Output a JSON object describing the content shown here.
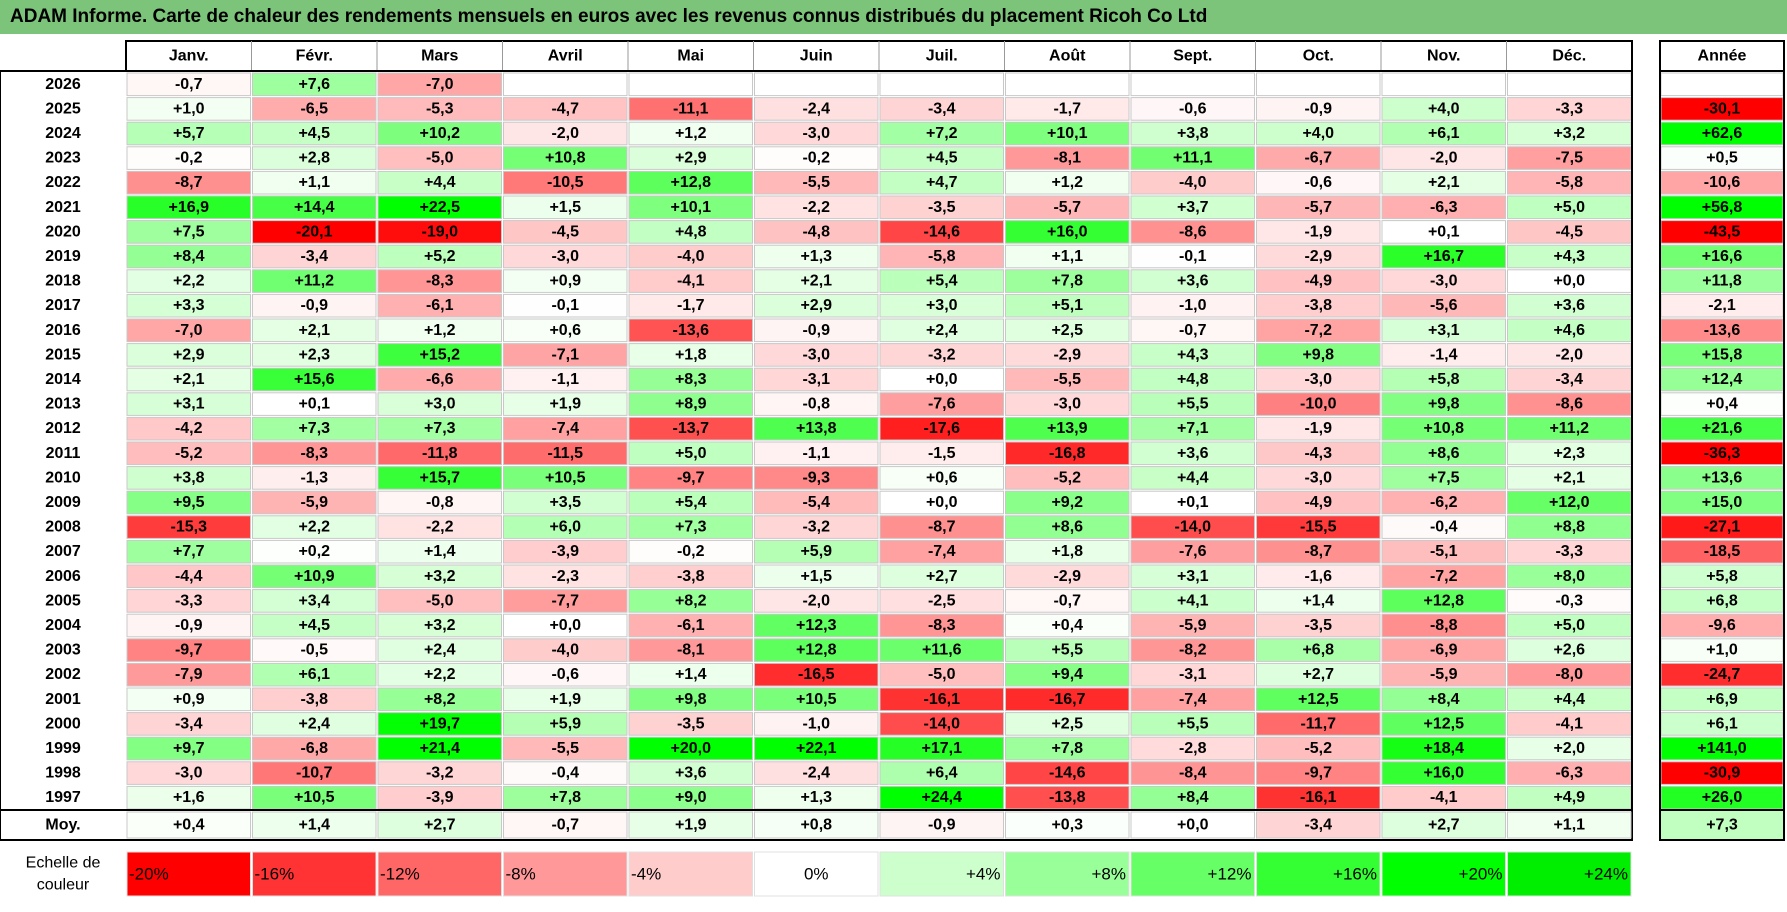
{
  "chart_data": {
    "type": "heatmap",
    "title": "ADAM Informe. Carte de chaleur des rendements mensuels en euros avec les revenus connus distribués du placement Ricoh Co Ltd",
    "columns": [
      "Janv.",
      "Févr.",
      "Mars",
      "Avril",
      "Mai",
      "Juin",
      "Juil.",
      "Août",
      "Sept.",
      "Oct.",
      "Nov.",
      "Déc."
    ],
    "year_header": "Année",
    "rows": [
      {
        "year": "2026",
        "values": [
          "-0,7",
          "+7,6",
          "-7,0",
          "",
          "",
          "",
          "",
          "",
          "",
          "",
          "",
          ""
        ],
        "annual": ""
      },
      {
        "year": "2025",
        "values": [
          "+1,0",
          "-6,5",
          "-5,3",
          "-4,7",
          "-11,1",
          "-2,4",
          "-3,4",
          "-1,7",
          "-0,6",
          "-0,9",
          "+4,0",
          "-3,3"
        ],
        "annual": "-30,1"
      },
      {
        "year": "2024",
        "values": [
          "+5,7",
          "+4,5",
          "+10,2",
          "-2,0",
          "+1,2",
          "-3,0",
          "+7,2",
          "+10,1",
          "+3,8",
          "+4,0",
          "+6,1",
          "+3,2"
        ],
        "annual": "+62,6"
      },
      {
        "year": "2023",
        "values": [
          "-0,2",
          "+2,8",
          "-5,0",
          "+10,8",
          "+2,9",
          "-0,2",
          "+4,5",
          "-8,1",
          "+11,1",
          "-6,7",
          "-2,0",
          "-7,5"
        ],
        "annual": "+0,5"
      },
      {
        "year": "2022",
        "values": [
          "-8,7",
          "+1,1",
          "+4,4",
          "-10,5",
          "+12,8",
          "-5,5",
          "+4,7",
          "+1,2",
          "-4,0",
          "-0,6",
          "+2,1",
          "-5,8"
        ],
        "annual": "-10,6"
      },
      {
        "year": "2021",
        "values": [
          "+16,9",
          "+14,4",
          "+22,5",
          "+1,5",
          "+10,1",
          "-2,2",
          "-3,5",
          "-5,7",
          "+3,7",
          "-5,7",
          "-6,3",
          "+5,0"
        ],
        "annual": "+56,8"
      },
      {
        "year": "2020",
        "values": [
          "+7,5",
          "-20,1",
          "-19,0",
          "-4,5",
          "+4,8",
          "-4,8",
          "-14,6",
          "+16,0",
          "-8,6",
          "-1,9",
          "+0,1",
          "-4,5"
        ],
        "annual": "-43,5"
      },
      {
        "year": "2019",
        "values": [
          "+8,4",
          "-3,4",
          "+5,2",
          "-3,0",
          "-4,0",
          "+1,3",
          "-5,8",
          "+1,1",
          "-0,1",
          "-2,9",
          "+16,7",
          "+4,3"
        ],
        "annual": "+16,6"
      },
      {
        "year": "2018",
        "values": [
          "+2,2",
          "+11,2",
          "-8,3",
          "+0,9",
          "-4,1",
          "+2,1",
          "+5,4",
          "+7,8",
          "+3,6",
          "-4,9",
          "-3,0",
          "+0,0"
        ],
        "annual": "+11,8"
      },
      {
        "year": "2017",
        "values": [
          "+3,3",
          "-0,9",
          "-6,1",
          "-0,1",
          "-1,7",
          "+2,9",
          "+3,0",
          "+5,1",
          "-1,0",
          "-3,8",
          "-5,6",
          "+3,6"
        ],
        "annual": "-2,1"
      },
      {
        "year": "2016",
        "values": [
          "-7,0",
          "+2,1",
          "+1,2",
          "+0,6",
          "-13,6",
          "-0,9",
          "+2,4",
          "+2,5",
          "-0,7",
          "-7,2",
          "+3,1",
          "+4,6"
        ],
        "annual": "-13,6"
      },
      {
        "year": "2015",
        "values": [
          "+2,9",
          "+2,3",
          "+15,2",
          "-7,1",
          "+1,8",
          "-3,0",
          "-3,2",
          "-2,9",
          "+4,3",
          "+9,8",
          "-1,4",
          "-2,0"
        ],
        "annual": "+15,8"
      },
      {
        "year": "2014",
        "values": [
          "+2,1",
          "+15,6",
          "-6,6",
          "-1,1",
          "+8,3",
          "-3,1",
          "+0,0",
          "-5,5",
          "+4,8",
          "-3,0",
          "+5,8",
          "-3,4"
        ],
        "annual": "+12,4"
      },
      {
        "year": "2013",
        "values": [
          "+3,1",
          "+0,1",
          "+3,0",
          "+1,9",
          "+8,9",
          "-0,8",
          "-7,6",
          "-3,0",
          "+5,5",
          "-10,0",
          "+9,8",
          "-8,6"
        ],
        "annual": "+0,4"
      },
      {
        "year": "2012",
        "values": [
          "-4,2",
          "+7,3",
          "+7,3",
          "-7,4",
          "-13,7",
          "+13,8",
          "-17,6",
          "+13,9",
          "+7,1",
          "-1,9",
          "+10,8",
          "+11,2"
        ],
        "annual": "+21,6"
      },
      {
        "year": "2011",
        "values": [
          "-5,2",
          "-8,3",
          "-11,8",
          "-11,5",
          "+5,0",
          "-1,1",
          "-1,5",
          "-16,8",
          "+3,6",
          "-4,3",
          "+8,6",
          "+2,3"
        ],
        "annual": "-36,3"
      },
      {
        "year": "2010",
        "values": [
          "+3,8",
          "-1,3",
          "+15,7",
          "+10,5",
          "-9,7",
          "-9,3",
          "+0,6",
          "-5,2",
          "+4,4",
          "-3,0",
          "+7,5",
          "+2,1"
        ],
        "annual": "+13,6"
      },
      {
        "year": "2009",
        "values": [
          "+9,5",
          "-5,9",
          "-0,8",
          "+3,5",
          "+5,4",
          "-5,4",
          "+0,0",
          "+9,2",
          "+0,1",
          "-4,9",
          "-6,2",
          "+12,0"
        ],
        "annual": "+15,0"
      },
      {
        "year": "2008",
        "values": [
          "-15,3",
          "+2,2",
          "-2,2",
          "+6,0",
          "+7,3",
          "-3,2",
          "-8,7",
          "+8,6",
          "-14,0",
          "-15,5",
          "-0,4",
          "+8,8"
        ],
        "annual": "-27,1"
      },
      {
        "year": "2007",
        "values": [
          "+7,7",
          "+0,2",
          "+1,4",
          "-3,9",
          "-0,2",
          "+5,9",
          "-7,4",
          "+1,8",
          "-7,6",
          "-8,7",
          "-5,1",
          "-3,3"
        ],
        "annual": "-18,5"
      },
      {
        "year": "2006",
        "values": [
          "-4,4",
          "+10,9",
          "+3,2",
          "-2,3",
          "-3,8",
          "+1,5",
          "+2,7",
          "-2,9",
          "+3,1",
          "-1,6",
          "-7,2",
          "+8,0"
        ],
        "annual": "+5,8"
      },
      {
        "year": "2005",
        "values": [
          "-3,3",
          "+3,4",
          "-5,0",
          "-7,7",
          "+8,2",
          "-2,0",
          "-2,5",
          "-0,7",
          "+4,1",
          "+1,4",
          "+12,8",
          "-0,3"
        ],
        "annual": "+6,8"
      },
      {
        "year": "2004",
        "values": [
          "-0,9",
          "+4,5",
          "+3,2",
          "+0,0",
          "-6,1",
          "+12,3",
          "-8,3",
          "+0,4",
          "-5,9",
          "-3,5",
          "-8,8",
          "+5,0"
        ],
        "annual": "-9,6"
      },
      {
        "year": "2003",
        "values": [
          "-9,7",
          "-0,5",
          "+2,4",
          "-4,0",
          "-8,1",
          "+12,8",
          "+11,6",
          "+5,5",
          "-8,2",
          "+6,8",
          "-6,9",
          "+2,6"
        ],
        "annual": "+1,0"
      },
      {
        "year": "2002",
        "values": [
          "-7,9",
          "+6,1",
          "+2,2",
          "-0,6",
          "+1,4",
          "-16,5",
          "-5,0",
          "+9,4",
          "-3,1",
          "+2,7",
          "-5,9",
          "-8,0"
        ],
        "annual": "-24,7"
      },
      {
        "year": "2001",
        "values": [
          "+0,9",
          "-3,8",
          "+8,2",
          "+1,9",
          "+9,8",
          "+10,5",
          "-16,1",
          "-16,7",
          "-7,4",
          "+12,5",
          "+8,4",
          "+4,4"
        ],
        "annual": "+6,9"
      },
      {
        "year": "2000",
        "values": [
          "-3,4",
          "+2,4",
          "+19,7",
          "+5,9",
          "-3,5",
          "-1,0",
          "-14,0",
          "+2,5",
          "+5,5",
          "-11,7",
          "+12,5",
          "-4,1"
        ],
        "annual": "+6,1"
      },
      {
        "year": "1999",
        "values": [
          "+9,7",
          "-6,8",
          "+21,4",
          "-5,5",
          "+20,0",
          "+22,1",
          "+17,1",
          "+7,8",
          "-2,8",
          "-5,2",
          "+18,4",
          "+2,0"
        ],
        "annual": "+141,0"
      },
      {
        "year": "1998",
        "values": [
          "-3,0",
          "-10,7",
          "-3,2",
          "-0,4",
          "+3,6",
          "-2,4",
          "+6,4",
          "-14,6",
          "-8,4",
          "-9,7",
          "+16,0",
          "-6,3"
        ],
        "annual": "-30,9"
      },
      {
        "year": "1997",
        "values": [
          "+1,6",
          "+10,5",
          "-3,9",
          "+7,8",
          "+9,0",
          "+1,3",
          "+24,4",
          "-13,8",
          "+8,4",
          "-16,1",
          "-4,1",
          "+4,9"
        ],
        "annual": "+26,0"
      }
    ],
    "average": {
      "label": "Moy.",
      "values": [
        "+0,4",
        "+1,4",
        "+2,7",
        "-0,7",
        "+1,9",
        "+0,8",
        "-0,9",
        "+0,3",
        "+0,0",
        "-3,4",
        "+2,7",
        "+1,1"
      ],
      "annual": "+7,3"
    },
    "scale": {
      "label_line1": "Echelle de",
      "label_line2": "couleur",
      "items": [
        {
          "label": "-20%",
          "color": "#ff0000",
          "align": "left"
        },
        {
          "label": "-16%",
          "color": "#ff3333",
          "align": "left"
        },
        {
          "label": "-12%",
          "color": "#ff6666",
          "align": "left"
        },
        {
          "label": "-8%",
          "color": "#ff9999",
          "align": "left"
        },
        {
          "label": "-4%",
          "color": "#ffcccc",
          "align": "left"
        },
        {
          "label": "0%",
          "color": "#ffffff",
          "align": "center"
        },
        {
          "label": "+4%",
          "color": "#ccffcc",
          "align": "right"
        },
        {
          "label": "+8%",
          "color": "#99ff99",
          "align": "right"
        },
        {
          "label": "+12%",
          "color": "#66ff66",
          "align": "right"
        },
        {
          "label": "+16%",
          "color": "#33ff33",
          "align": "right"
        },
        {
          "label": "+20%",
          "color": "#00ff00",
          "align": "right"
        },
        {
          "label": "+24%",
          "color": "#00ee00",
          "align": "right"
        }
      ]
    },
    "colors": {
      "positive_max": "#00ff00",
      "negative_max": "#ff0000",
      "title_bar": "#7cc47a"
    }
  }
}
